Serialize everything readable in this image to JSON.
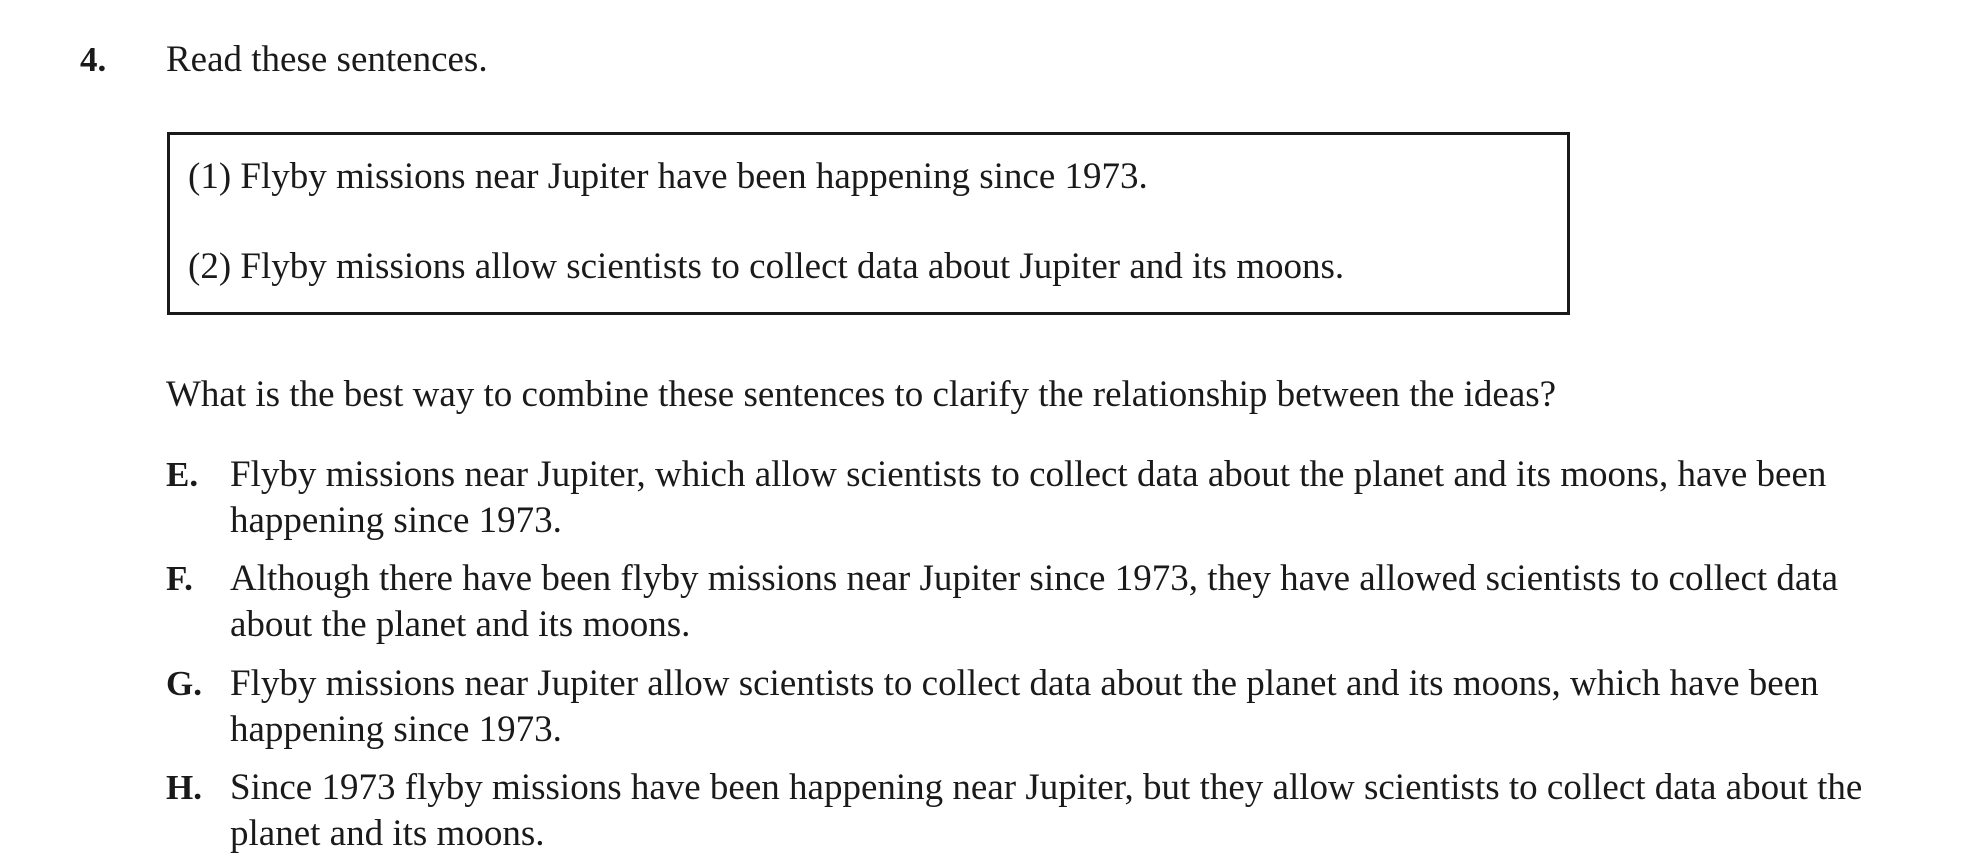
{
  "question": {
    "number": "4.",
    "intro": "Read these sentences."
  },
  "sentences": [
    "(1) Flyby missions near Jupiter have been happening since 1973.",
    "(2) Flyby missions allow scientists to collect data about Jupiter and its moons."
  ],
  "prompt": "What is the best way to combine these sentences to clarify the relationship between the ideas?",
  "options": [
    {
      "letter": "E.",
      "text": "Flyby missions near Jupiter, which allow scientists to collect data about the planet and its moons, have been happening since 1973."
    },
    {
      "letter": "F.",
      "text": "Although there have been flyby missions near Jupiter since 1973, they have allowed scientists to collect data about the planet and its moons."
    },
    {
      "letter": "G.",
      "text": "Flyby missions near Jupiter allow scientists to collect data about the planet and its moons, which have been happening since 1973."
    },
    {
      "letter": "H.",
      "text": "Since 1973 flyby missions have been happening near Jupiter, but they allow scientists to collect data about the planet and its moons."
    }
  ]
}
